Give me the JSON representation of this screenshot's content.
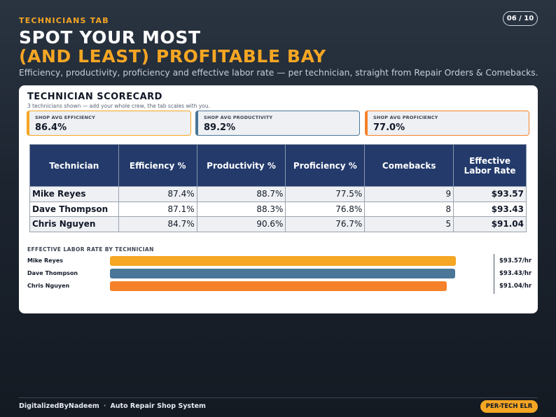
{
  "header": {
    "tag": "TECHNICIANS TAB",
    "page_indicator": "06 / 10",
    "title_line1": "SPOT YOUR MOST",
    "title_line2": "(AND LEAST) PROFITABLE BAY",
    "subtitle": "Efficiency, productivity, proficiency and effective labor rate — per technician, straight from Repair Orders & Comebacks."
  },
  "card": {
    "title": "TECHNICIAN SCORECARD",
    "subtitle": "3 technicians shown — add your whole crew, the tab scales with you.",
    "kpis": [
      {
        "label": "SHOP AVG EFFICIENCY",
        "value": "86.4%",
        "color": "#f5a623"
      },
      {
        "label": "SHOP AVG PRODUCTIVITY",
        "value": "89.2%",
        "color": "#4a7697"
      },
      {
        "label": "SHOP AVG PROFICIENCY",
        "value": "77.0%",
        "color": "#f5812a"
      }
    ],
    "table": {
      "headers": [
        "Technician",
        "Efficiency %",
        "Productivity %",
        "Proficiency %",
        "Comebacks",
        "Effective Labor Rate"
      ],
      "rows": [
        [
          "Mike Reyes",
          "87.4%",
          "88.7%",
          "77.5%",
          "9",
          "$93.57"
        ],
        [
          "Dave Thompson",
          "87.1%",
          "88.3%",
          "76.8%",
          "8",
          "$93.43"
        ],
        [
          "Chris Nguyen",
          "84.7%",
          "90.6%",
          "76.7%",
          "5",
          "$91.04"
        ]
      ]
    },
    "bar_chart_title": "EFFECTIVE LABOR RATE BY TECHNICIAN"
  },
  "chart_data": {
    "type": "bar",
    "title": "EFFECTIVE LABOR RATE BY TECHNICIAN",
    "categories": [
      "Mike Reyes",
      "Dave Thompson",
      "Chris Nguyen"
    ],
    "values": [
      93.57,
      93.43,
      91.04
    ],
    "value_labels": [
      "$93.57/hr",
      "$93.43/hr",
      "$91.04/hr"
    ],
    "colors": [
      "#f5a623",
      "#4a7697",
      "#f5812a"
    ],
    "xlim": [
      0,
      98.5
    ],
    "orientation": "horizontal"
  },
  "footer": {
    "brand": "DigitalizedByNadeem",
    "separator": "·",
    "product": "Auto Repair Shop System",
    "badge": "PER-TECH ELR"
  }
}
